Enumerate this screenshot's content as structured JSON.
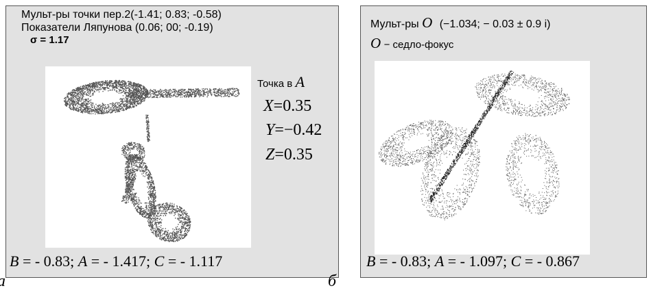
{
  "panel_a": {
    "line1": "Мульт-ры точки пер.2(-1.41; 0.83; -0.58)",
    "line2": "Показатели Ляпунова (0.06; 00; -0.19)",
    "sigma": "σ = 1.17",
    "point_label": "Точка в",
    "point_var": "A",
    "x_var": "X",
    "x_value": "=0.35",
    "y_var": "Y",
    "y_value": "=−0.42",
    "z_var": "Z",
    "z_value": "=0.35",
    "params": {
      "b_var": "B",
      "b_val": " = - 0.83; ",
      "a_var": "A",
      "a_val": " = - 1.417; ",
      "c_var": "C",
      "c_val": " = - 1.117"
    },
    "plot_color": "#555555"
  },
  "panel_b": {
    "line1_pre": "Мульт-ры",
    "line1_var": "O",
    "line1_post": "(−1.034; − 0.03 ± 0.9 i)",
    "line2_var": "O",
    "line2_post": "− седло-фокус",
    "params": {
      "b_var": "B",
      "b_val": " = - 0.83; ",
      "a_var": "A",
      "a_val": " = - 1.097; ",
      "c_var": "C",
      "c_val": " = - 0.867"
    },
    "plot_color": "#222222"
  },
  "captions": {
    "a": "а",
    "b": "б"
  }
}
